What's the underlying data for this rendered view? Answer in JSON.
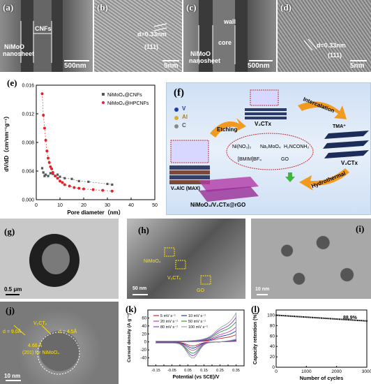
{
  "panels": {
    "a": {
      "label": "(a)",
      "annot1": "NiMoO",
      "annot2": "nanosheet",
      "annot3": "CNFs",
      "scale": "500nm"
    },
    "b": {
      "label": "(b)",
      "d": "d=0.33nm",
      "hkl": "(111)",
      "scale": "5nm"
    },
    "c": {
      "label": "(c)",
      "wall": "wall",
      "core": "core",
      "annot1": "NiMoO",
      "annot2": "nanosheet",
      "scale": "500nm"
    },
    "d": {
      "label": "(d)",
      "d": "d=0.33nm",
      "hkl": "(111)",
      "scale": "5nm"
    },
    "e": {
      "label": "(e)"
    },
    "f": {
      "label": "(f)",
      "v": "V",
      "al": "Al",
      "c": "C",
      "max": "V₂AlC (MAX)",
      "etching": "Etching",
      "v2ctx1": "V₂CTx",
      "intercalation": "Intercalation",
      "tma": "TMA⁺",
      "v2ctx2": "V₂CTx",
      "hydrothermal": "Hydrothermal",
      "product": "NiMoO₄/V₂CTx@rGO",
      "r1": "Ni(NO₃)₂",
      "r2": "Na₂MoO₄",
      "r3": "H₂NCONH₂",
      "r4": "[BMIM]BF₄",
      "r5": "GO"
    },
    "g": {
      "label": "(g)",
      "scale": "0.5 μm"
    },
    "h": {
      "label": "(h)",
      "a1": "NiMoO₄",
      "a2": "V₂CTₓ",
      "a3": "GO",
      "scale": "50 nm"
    },
    "i": {
      "label": "(i)",
      "scale": "10 nm"
    },
    "j": {
      "label": "(j)",
      "a1": "V₂CTₓ",
      "a2": "d = 9.0Å",
      "a3": "d = 4.5Å",
      "a4": "4.66 Å",
      "a5": "(201) for NiMoO₄",
      "scale": "10 nm"
    },
    "k": {
      "label": "(k)"
    },
    "l": {
      "label": "(l)",
      "annot": "88.9%"
    }
  },
  "chart_data": [
    {
      "type": "scatter",
      "id": "e",
      "xlabel": "Pore diameter（nm）",
      "ylabel": "dV/dD（cm³nm⁻¹g⁻¹）",
      "xlim": [
        0,
        50
      ],
      "ylim": [
        0,
        0.016
      ],
      "xticks": [
        0,
        10,
        20,
        30,
        40,
        50
      ],
      "yticks": [
        0.0,
        0.004,
        0.008,
        0.012,
        0.016
      ],
      "yticklabels": [
        "0.000",
        "0.004",
        "0.008",
        "0.012",
        "0.016"
      ],
      "legend": "top-right",
      "series": [
        {
          "name": "NiMoO₄@CNFs",
          "color": "#555555",
          "x": [
            2.5,
            3,
            3.5,
            4,
            5,
            6,
            7,
            8,
            9,
            10,
            12,
            15,
            18,
            22,
            30,
            32
          ],
          "y": [
            0.0044,
            0.0038,
            0.0033,
            0.0035,
            0.0033,
            0.0037,
            0.0036,
            0.0033,
            0.0035,
            0.0032,
            0.003,
            0.0029,
            0.0026,
            0.0025,
            0.0022,
            0.0021
          ]
        },
        {
          "name": "NiMoO₄@HPCNFs",
          "color": "#e8202a",
          "x": [
            2.5,
            3,
            3.5,
            4,
            4.5,
            5,
            5.5,
            6,
            6.5,
            7,
            8,
            9,
            10,
            11,
            12,
            14,
            16,
            18,
            20,
            24,
            28,
            32
          ],
          "y": [
            0.0148,
            0.0118,
            0.01,
            0.0083,
            0.0068,
            0.0058,
            0.0052,
            0.0046,
            0.0043,
            0.0038,
            0.0033,
            0.003,
            0.0026,
            0.0024,
            0.0021,
            0.0019,
            0.0017,
            0.0016,
            0.0015,
            0.0014,
            0.0013,
            0.0012
          ]
        }
      ]
    },
    {
      "type": "line",
      "id": "k",
      "xlabel": "Potential (vs SCE)/V",
      "ylabel": "Current density (A g⁻¹)",
      "xlim": [
        -0.2,
        0.4
      ],
      "ylim": [
        -60,
        80
      ],
      "xticks": [
        -0.15,
        -0.1,
        -0.05,
        0.0,
        0.05,
        0.1,
        0.15,
        0.2,
        0.25,
        0.3,
        0.35
      ],
      "xticklabels": [
        "-0.15",
        "-0.10",
        "-0.05",
        "0.00",
        "0.05",
        "0.10",
        "0.15",
        "0.20",
        "0.25",
        "0.30",
        "0.35"
      ],
      "yticks": [
        -40,
        -20,
        0,
        20,
        40,
        60
      ],
      "legend": "top-left",
      "series": [
        {
          "name": "5 mV s⁻¹",
          "color": "#d62728",
          "scale": 0.25
        },
        {
          "name": "10 mV s⁻¹",
          "color": "#1f3aa6",
          "scale": 0.38
        },
        {
          "name": "20 mV s⁻¹",
          "color": "#c23ac2",
          "scale": 0.52
        },
        {
          "name": "50 mV s⁻¹",
          "color": "#2ca02c",
          "scale": 0.7
        },
        {
          "name": "80 mV s⁻¹",
          "color": "#8a3fc7",
          "scale": 0.85
        },
        {
          "name": "100 mV s⁻¹",
          "color": "#9aa0aa",
          "scale": 1.0
        }
      ]
    },
    {
      "type": "scatter",
      "id": "l",
      "xlabel": "Number of cycles",
      "ylabel": "Capacity retention (%)",
      "xlim": [
        0,
        3000
      ],
      "ylim": [
        0,
        110
      ],
      "xticks": [
        0,
        1000,
        2000,
        3000
      ],
      "yticks": [
        0,
        20,
        40,
        60,
        80,
        100
      ],
      "series": [
        {
          "name": "",
          "color": "#111111",
          "start": 100,
          "end": 88.9
        }
      ]
    }
  ]
}
